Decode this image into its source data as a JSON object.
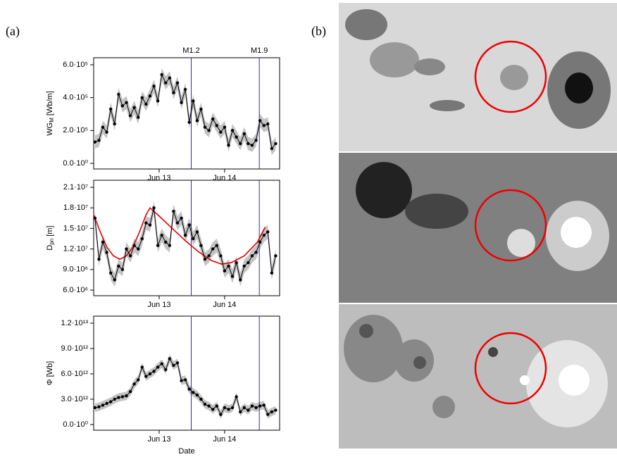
{
  "panel_labels": [
    "(a)",
    "(b)"
  ],
  "chart_data": [
    {
      "type": "line",
      "ylabel": {
        "main": "WG",
        "sub": "M",
        "unit": " [Wb/m]"
      },
      "x": [
        0.02,
        0.08,
        0.14,
        0.2,
        0.26,
        0.32,
        0.38,
        0.44,
        0.5,
        0.56,
        0.62,
        0.68,
        0.74,
        0.8,
        0.86,
        0.92,
        0.98,
        1.04,
        1.1,
        1.16,
        1.22,
        1.28,
        1.34,
        1.4,
        1.46,
        1.52,
        1.58,
        1.64,
        1.7,
        1.76,
        1.82,
        1.88,
        1.94,
        2.0,
        2.06,
        2.12,
        2.18,
        2.24,
        2.3,
        2.36,
        2.42,
        2.48,
        2.54,
        2.6,
        2.66,
        2.72,
        2.78
      ],
      "series": [
        {
          "color": "#000000",
          "error": 40000,
          "values": [
            130000,
            140000,
            220000,
            190000,
            330000,
            240000,
            420000,
            350000,
            370000,
            290000,
            340000,
            280000,
            400000,
            360000,
            410000,
            470000,
            380000,
            540000,
            490000,
            520000,
            430000,
            490000,
            370000,
            450000,
            250000,
            380000,
            260000,
            330000,
            220000,
            200000,
            270000,
            230000,
            190000,
            220000,
            110000,
            200000,
            160000,
            120000,
            180000,
            120000,
            110000,
            140000,
            260000,
            230000,
            240000,
            90000,
            120000
          ]
        }
      ],
      "xlim": [
        0,
        2.84
      ],
      "xticks": [
        {
          "value": 1,
          "label": "Jun 13"
        },
        {
          "value": 2,
          "label": "Jun 14"
        }
      ],
      "ylim": [
        0,
        600000
      ],
      "yticks": [
        {
          "value": 0,
          "label": "0.0·10⁰"
        },
        {
          "value": 200000,
          "label": "2.0·10⁵"
        },
        {
          "value": 400000,
          "label": "4.0·10⁵"
        },
        {
          "value": 600000,
          "label": "6.0·10⁵"
        }
      ],
      "vlines": [
        {
          "x": 1.49,
          "label": "M1.2"
        },
        {
          "x": 2.53,
          "label": "M1.9"
        }
      ],
      "vline_color": "#2a2ad0"
    },
    {
      "type": "line",
      "ylabel": {
        "main": "D",
        "sub": "pn",
        "unit": " [m]"
      },
      "x": [
        0.02,
        0.08,
        0.14,
        0.2,
        0.26,
        0.32,
        0.38,
        0.44,
        0.5,
        0.56,
        0.62,
        0.68,
        0.74,
        0.8,
        0.86,
        0.92,
        0.98,
        1.04,
        1.1,
        1.16,
        1.22,
        1.28,
        1.34,
        1.4,
        1.46,
        1.52,
        1.58,
        1.64,
        1.7,
        1.76,
        1.82,
        1.88,
        1.94,
        2.0,
        2.06,
        2.12,
        2.18,
        2.24,
        2.3,
        2.36,
        2.42,
        2.48,
        2.54,
        2.6,
        2.66,
        2.72,
        2.78
      ],
      "series": [
        {
          "color": "#000000",
          "error": 1000000,
          "values": [
            16500000,
            10500000,
            13000000,
            11500000,
            8500000,
            7500000,
            9500000,
            9000000,
            12000000,
            11000000,
            12500000,
            12000000,
            13500000,
            15800000,
            15500000,
            18000000,
            12500000,
            14000000,
            13000000,
            12500000,
            17500000,
            15800000,
            16500000,
            14000000,
            15500000,
            13500000,
            14500000,
            12500000,
            10500000,
            11000000,
            12000000,
            12500000,
            11000000,
            8800000,
            9500000,
            8000000,
            10000000,
            7500000,
            9500000,
            10000000,
            11000000,
            11500000,
            13000000,
            14000000,
            14500000,
            8500000,
            11000000
          ]
        }
      ],
      "fit": {
        "color": "#e00000",
        "x": [
          0,
          0.1,
          0.2,
          0.3,
          0.4,
          0.5,
          0.6,
          0.7,
          0.8,
          0.86,
          1.0,
          1.2,
          1.4,
          1.6,
          1.8,
          1.95,
          2.1,
          2.3,
          2.5,
          2.62
        ],
        "values": [
          17000000,
          14500000,
          12300000,
          11000000,
          10500000,
          11000000,
          12300000,
          14500000,
          17000000,
          18000000,
          16800000,
          15000000,
          13200000,
          11600000,
          10300000,
          9800000,
          10000000,
          11000000,
          13000000,
          15200000
        ]
      },
      "xlim": [
        0,
        2.84
      ],
      "xticks": [
        {
          "value": 1,
          "label": "Jun 13"
        },
        {
          "value": 2,
          "label": "Jun 14"
        }
      ],
      "ylim": [
        6000000,
        21000000
      ],
      "yticks": [
        {
          "value": 6000000,
          "label": "6.0·10⁶"
        },
        {
          "value": 9000000,
          "label": "9.0·10⁶"
        },
        {
          "value": 12000000,
          "label": "1.2·10⁷"
        },
        {
          "value": 15000000,
          "label": "1.5·10⁷"
        },
        {
          "value": 18000000,
          "label": "1.8·10⁷"
        },
        {
          "value": 21000000,
          "label": "2.1·10⁷"
        }
      ],
      "vlines": [
        {
          "x": 1.49
        },
        {
          "x": 2.53
        }
      ],
      "vline_color": "#2a2ad0"
    },
    {
      "type": "line",
      "ylabel": {
        "main": "Φ",
        "unit": " [Wb]"
      },
      "xlabel": "Date",
      "x": [
        0.02,
        0.08,
        0.14,
        0.2,
        0.26,
        0.32,
        0.38,
        0.44,
        0.5,
        0.56,
        0.62,
        0.68,
        0.74,
        0.8,
        0.86,
        0.92,
        0.98,
        1.04,
        1.1,
        1.16,
        1.22,
        1.28,
        1.34,
        1.4,
        1.46,
        1.52,
        1.58,
        1.64,
        1.7,
        1.76,
        1.82,
        1.88,
        1.94,
        2.0,
        2.06,
        2.12,
        2.18,
        2.24,
        2.3,
        2.36,
        2.42,
        2.48,
        2.54,
        2.6,
        2.66,
        2.72,
        2.78
      ],
      "series": [
        {
          "color": "#000000",
          "error": 500000000000,
          "values": [
            2000000000000,
            2100000000000,
            2300000000000,
            2500000000000,
            2700000000000,
            3000000000000,
            3200000000000,
            3300000000000,
            3400000000000,
            3900000000000,
            4800000000000,
            5300000000000,
            6800000000000,
            5700000000000,
            6000000000000,
            6300000000000,
            6800000000000,
            7200000000000,
            6500000000000,
            7800000000000,
            7000000000000,
            7300000000000,
            5200000000000,
            5300000000000,
            4200000000000,
            3800000000000,
            3500000000000,
            3000000000000,
            2400000000000,
            2200000000000,
            1800000000000,
            2200000000000,
            1200000000000,
            2000000000000,
            1800000000000,
            2000000000000,
            3300000000000,
            1500000000000,
            2000000000000,
            1700000000000,
            2200000000000,
            2000000000000,
            2200000000000,
            2300000000000,
            1200000000000,
            1500000000000,
            1700000000000
          ]
        }
      ],
      "xlim": [
        0,
        2.84
      ],
      "xticks": [
        {
          "value": 1,
          "label": "Jun 13"
        },
        {
          "value": 2,
          "label": "Jun 14"
        }
      ],
      "ylim": [
        0,
        12000000000000
      ],
      "yticks": [
        {
          "value": 0,
          "label": "0.0·10⁰"
        },
        {
          "value": 3000000000000,
          "label": "3.0·10¹²"
        },
        {
          "value": 6000000000000,
          "label": "6.0·10¹²"
        },
        {
          "value": 9000000000000,
          "label": "9.0·10¹²"
        },
        {
          "value": 12000000000000,
          "label": "1.2·10¹³"
        }
      ],
      "vlines": [
        {
          "x": 1.49
        },
        {
          "x": 2.53
        }
      ],
      "vline_color": "#2a2ad0"
    }
  ]
}
